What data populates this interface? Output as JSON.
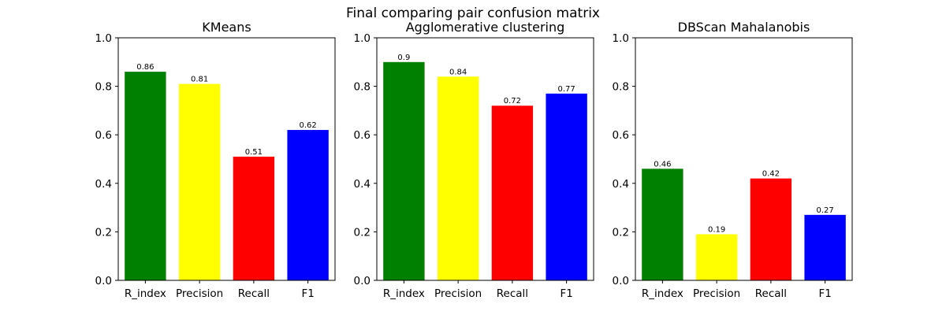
{
  "figure": {
    "title": "Final comparing pair confusion matrix"
  },
  "chart_data": [
    {
      "type": "bar",
      "title": "KMeans",
      "categories": [
        "R_index",
        "Precision",
        "Recall",
        "F1"
      ],
      "values": [
        0.86,
        0.81,
        0.51,
        0.62
      ],
      "value_labels": [
        "0.86",
        "0.81",
        "0.51",
        "0.62"
      ],
      "colors": [
        "#008000",
        "#ffff00",
        "#ff0000",
        "#0000ff"
      ],
      "ylim": [
        0,
        1
      ],
      "yticks": [
        "0.0",
        "0.2",
        "0.4",
        "0.6",
        "0.8",
        "1.0"
      ],
      "xlabel": "",
      "ylabel": "",
      "grid": false,
      "legend": "none"
    },
    {
      "type": "bar",
      "title": "Agglomerative clustering",
      "categories": [
        "R_index",
        "Precision",
        "Recall",
        "F1"
      ],
      "values": [
        0.9,
        0.84,
        0.72,
        0.77
      ],
      "value_labels": [
        "0.9",
        "0.84",
        "0.72",
        "0.77"
      ],
      "colors": [
        "#008000",
        "#ffff00",
        "#ff0000",
        "#0000ff"
      ],
      "ylim": [
        0,
        1
      ],
      "yticks": [
        "0.0",
        "0.2",
        "0.4",
        "0.6",
        "0.8",
        "1.0"
      ],
      "xlabel": "",
      "ylabel": "",
      "grid": false,
      "legend": "none"
    },
    {
      "type": "bar",
      "title": "DBScan Mahalanobis",
      "categories": [
        "R_index",
        "Precision",
        "Recall",
        "F1"
      ],
      "values": [
        0.46,
        0.19,
        0.42,
        0.27
      ],
      "value_labels": [
        "0.46",
        "0.19",
        "0.42",
        "0.27"
      ],
      "colors": [
        "#008000",
        "#ffff00",
        "#ff0000",
        "#0000ff"
      ],
      "ylim": [
        0,
        1
      ],
      "yticks": [
        "0.0",
        "0.2",
        "0.4",
        "0.6",
        "0.8",
        "1.0"
      ],
      "xlabel": "",
      "ylabel": "",
      "grid": false,
      "legend": "none"
    }
  ]
}
